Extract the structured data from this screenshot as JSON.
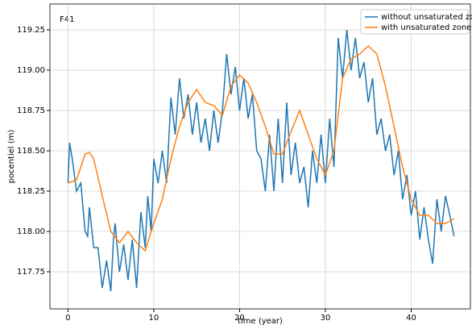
{
  "chart_data": {
    "type": "line",
    "annotation": "F41",
    "xlabel": "time (year)",
    "ylabel": "pocentiel (m)",
    "xlim": [
      -2.1,
      46.9
    ],
    "ylim": [
      117.52,
      119.41
    ],
    "xticks": [
      0,
      10,
      20,
      30,
      40
    ],
    "yticks": [
      117.75,
      {
        "value": 118,
        "label": "118.00"
      },
      118.25,
      {
        "value": 118.5,
        "label": "118.50"
      },
      118.75,
      {
        "value": 119,
        "label": "119.00"
      },
      119.25
    ],
    "grid": true,
    "legend": "upper right",
    "series": [
      {
        "name": "without unsaturated zone",
        "color": "#1f77b4",
        "x": [
          0,
          0.2,
          0.5,
          1,
          1.5,
          2,
          2.3,
          2.5,
          3,
          3.5,
          4,
          4.5,
          5,
          5.3,
          5.5,
          6,
          6.5,
          7,
          7.5,
          8,
          8.5,
          9,
          9.3,
          9.7,
          10,
          10.5,
          11,
          11.5,
          12,
          12.5,
          13,
          13.5,
          14,
          14.5,
          15,
          15.5,
          16,
          16.5,
          17,
          17.5,
          18,
          18.5,
          19,
          19.5,
          20,
          20.5,
          21,
          21.5,
          22,
          22.5,
          23,
          23.5,
          24,
          24.5,
          25,
          25.5,
          26,
          26.5,
          27,
          27.5,
          28,
          28.5,
          29,
          29.5,
          30,
          30.5,
          31,
          31.5,
          32,
          32.5,
          33,
          33.5,
          34,
          34.5,
          35,
          35.5,
          36,
          36.5,
          37,
          37.5,
          38,
          38.5,
          39,
          39.5,
          40,
          40.5,
          41,
          41.5,
          42,
          42.5,
          43,
          43.5,
          44,
          44.5,
          45
        ],
        "values": [
          118.3,
          118.55,
          118.45,
          118.25,
          118.3,
          118.0,
          117.97,
          118.15,
          117.9,
          117.9,
          117.65,
          117.82,
          117.63,
          117.95,
          118.05,
          117.75,
          117.92,
          117.7,
          117.95,
          117.65,
          118.12,
          117.9,
          118.22,
          118.0,
          118.45,
          118.3,
          118.5,
          118.3,
          118.83,
          118.6,
          118.95,
          118.7,
          118.85,
          118.6,
          118.8,
          118.55,
          118.7,
          118.5,
          118.75,
          118.55,
          118.75,
          119.1,
          118.85,
          119.02,
          118.75,
          118.95,
          118.7,
          118.85,
          118.5,
          118.45,
          118.25,
          118.6,
          118.25,
          118.7,
          118.3,
          118.8,
          118.35,
          118.55,
          118.3,
          118.4,
          118.15,
          118.5,
          118.3,
          118.6,
          118.3,
          118.7,
          118.4,
          119.2,
          118.95,
          119.25,
          119.0,
          119.2,
          118.95,
          119.05,
          118.8,
          118.95,
          118.6,
          118.7,
          118.5,
          118.6,
          118.35,
          118.5,
          118.2,
          118.35,
          118.1,
          118.25,
          117.95,
          118.15,
          117.95,
          117.8,
          118.2,
          118.0,
          118.22,
          118.1,
          117.97
        ]
      },
      {
        "name": "with unsaturated zone",
        "color": "#ff7f0e",
        "x": [
          0,
          1,
          2,
          2.5,
          3,
          4,
          5,
          6,
          7,
          8,
          9,
          10,
          11,
          12,
          13,
          14,
          15,
          16,
          17,
          18,
          19,
          20,
          21,
          22,
          23,
          24,
          25,
          26,
          27,
          28,
          29,
          30,
          31,
          32,
          33,
          34,
          35,
          36,
          37,
          38,
          39,
          40,
          41,
          42,
          43,
          44,
          45
        ],
        "values": [
          118.3,
          118.32,
          118.48,
          118.49,
          118.45,
          118.22,
          118.0,
          117.93,
          118.0,
          117.93,
          117.88,
          118.05,
          118.2,
          118.45,
          118.65,
          118.8,
          118.88,
          118.8,
          118.78,
          118.72,
          118.9,
          118.97,
          118.92,
          118.8,
          118.65,
          118.48,
          118.48,
          118.62,
          118.75,
          118.6,
          118.45,
          118.35,
          118.5,
          118.95,
          119.07,
          119.1,
          119.15,
          119.1,
          118.9,
          118.65,
          118.4,
          118.2,
          118.1,
          118.1,
          118.05,
          118.05,
          118.08
        ]
      }
    ]
  }
}
